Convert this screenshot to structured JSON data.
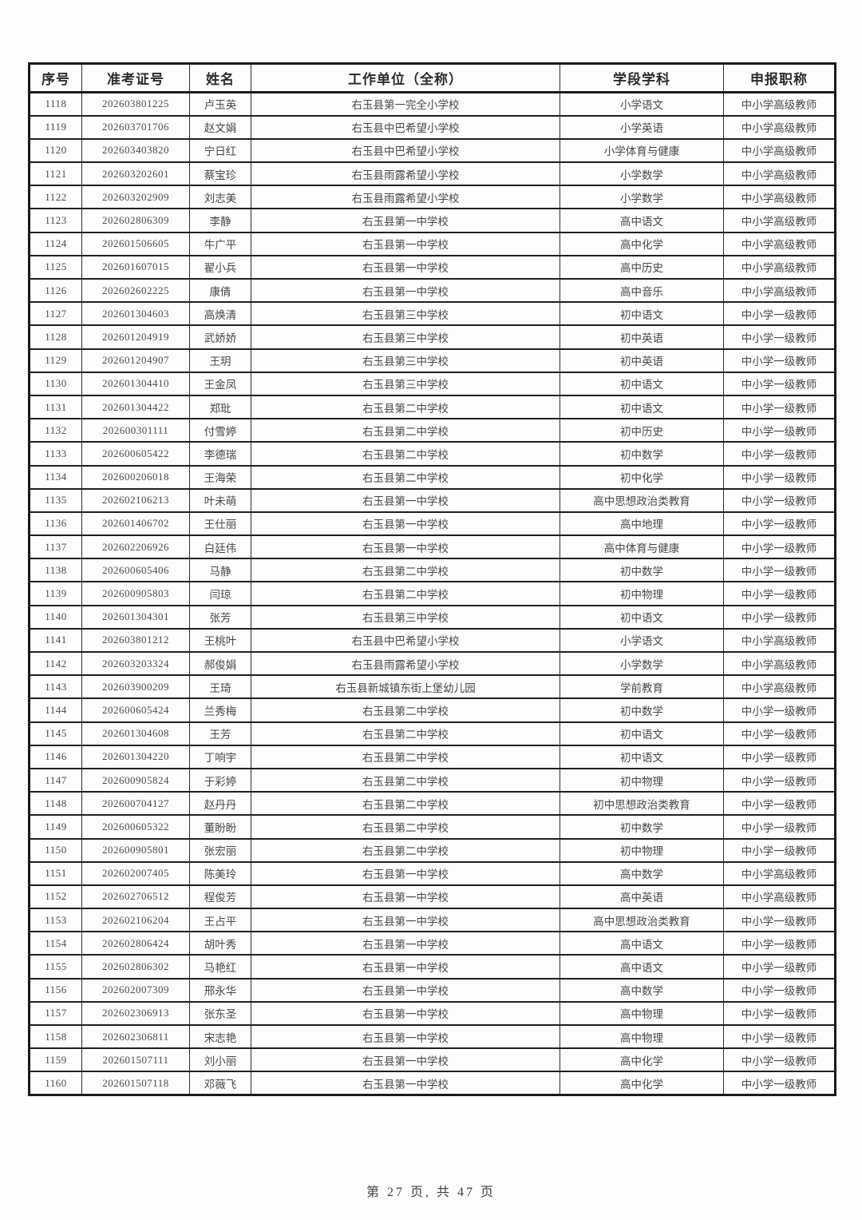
{
  "table": {
    "headers": [
      "序号",
      "准考证号",
      "姓名",
      "工作单位（全称）",
      "学段学科",
      "申报职称"
    ],
    "rows": [
      [
        "1118",
        "202603801225",
        "卢玉英",
        "右玉县第一完全小学校",
        "小学语文",
        "中小学高级教师"
      ],
      [
        "1119",
        "202603701706",
        "赵文娟",
        "右玉县中巴希望小学校",
        "小学英语",
        "中小学高级教师"
      ],
      [
        "1120",
        "202603403820",
        "宁日红",
        "右玉县中巴希望小学校",
        "小学体育与健康",
        "中小学高级教师"
      ],
      [
        "1121",
        "202603202601",
        "蔡宝珍",
        "右玉县雨露希望小学校",
        "小学数学",
        "中小学高级教师"
      ],
      [
        "1122",
        "202603202909",
        "刘志美",
        "右玉县雨露希望小学校",
        "小学数学",
        "中小学高级教师"
      ],
      [
        "1123",
        "202602806309",
        "李静",
        "右玉县第一中学校",
        "高中语文",
        "中小学高级教师"
      ],
      [
        "1124",
        "202601506605",
        "牛广平",
        "右玉县第一中学校",
        "高中化学",
        "中小学高级教师"
      ],
      [
        "1125",
        "202601607015",
        "翟小兵",
        "右玉县第一中学校",
        "高中历史",
        "中小学高级教师"
      ],
      [
        "1126",
        "202602602225",
        "康倩",
        "右玉县第一中学校",
        "高中音乐",
        "中小学高级教师"
      ],
      [
        "1127",
        "202601304603",
        "高焕清",
        "右玉县第三中学校",
        "初中语文",
        "中小学一级教师"
      ],
      [
        "1128",
        "202601204919",
        "武娇娇",
        "右玉县第三中学校",
        "初中英语",
        "中小学一级教师"
      ],
      [
        "1129",
        "202601204907",
        "王玥",
        "右玉县第三中学校",
        "初中英语",
        "中小学一级教师"
      ],
      [
        "1130",
        "202601304410",
        "王金凤",
        "右玉县第三中学校",
        "初中语文",
        "中小学一级教师"
      ],
      [
        "1131",
        "202601304422",
        "郑玭",
        "右玉县第二中学校",
        "初中语文",
        "中小学一级教师"
      ],
      [
        "1132",
        "202600301111",
        "付雪婷",
        "右玉县第二中学校",
        "初中历史",
        "中小学一级教师"
      ],
      [
        "1133",
        "202600605422",
        "李德瑞",
        "右玉县第二中学校",
        "初中数学",
        "中小学一级教师"
      ],
      [
        "1134",
        "202600206018",
        "王海荣",
        "右玉县第二中学校",
        "初中化学",
        "中小学一级教师"
      ],
      [
        "1135",
        "202602106213",
        "叶未萌",
        "右玉县第一中学校",
        "高中思想政治类教育",
        "中小学一级教师"
      ],
      [
        "1136",
        "202601406702",
        "王仕丽",
        "右玉县第一中学校",
        "高中地理",
        "中小学一级教师"
      ],
      [
        "1137",
        "202602206926",
        "白廷伟",
        "右玉县第一中学校",
        "高中体育与健康",
        "中小学一级教师"
      ],
      [
        "1138",
        "202600605406",
        "马静",
        "右玉县第二中学校",
        "初中数学",
        "中小学一级教师"
      ],
      [
        "1139",
        "202600905803",
        "闫琼",
        "右玉县第二中学校",
        "初中物理",
        "中小学一级教师"
      ],
      [
        "1140",
        "202601304301",
        "张芳",
        "右玉县第三中学校",
        "初中语文",
        "中小学一级教师"
      ],
      [
        "1141",
        "202603801212",
        "王桃叶",
        "右玉县中巴希望小学校",
        "小学语文",
        "中小学高级教师"
      ],
      [
        "1142",
        "202603203324",
        "郝俊娟",
        "右玉县雨露希望小学校",
        "小学数学",
        "中小学高级教师"
      ],
      [
        "1143",
        "202603900209",
        "王琦",
        "右玉县新城镇东街上堡幼儿园",
        "学前教育",
        "中小学高级教师"
      ],
      [
        "1144",
        "202600605424",
        "兰秀梅",
        "右玉县第二中学校",
        "初中数学",
        "中小学一级教师"
      ],
      [
        "1145",
        "202601304608",
        "王芳",
        "右玉县第二中学校",
        "初中语文",
        "中小学一级教师"
      ],
      [
        "1146",
        "202601304220",
        "丁响宇",
        "右玉县第二中学校",
        "初中语文",
        "中小学一级教师"
      ],
      [
        "1147",
        "202600905824",
        "于彩婷",
        "右玉县第二中学校",
        "初中物理",
        "中小学一级教师"
      ],
      [
        "1148",
        "202600704127",
        "赵丹丹",
        "右玉县第二中学校",
        "初中思想政治类教育",
        "中小学一级教师"
      ],
      [
        "1149",
        "202600605322",
        "董盼盼",
        "右玉县第二中学校",
        "初中数学",
        "中小学一级教师"
      ],
      [
        "1150",
        "202600905801",
        "张宏丽",
        "右玉县第二中学校",
        "初中物理",
        "中小学一级教师"
      ],
      [
        "1151",
        "202602007405",
        "陈美玲",
        "右玉县第一中学校",
        "高中数学",
        "中小学高级教师"
      ],
      [
        "1152",
        "202602706512",
        "程俊芳",
        "右玉县第一中学校",
        "高中英语",
        "中小学高级教师"
      ],
      [
        "1153",
        "202602106204",
        "王占平",
        "右玉县第一中学校",
        "高中思想政治类教育",
        "中小学一级教师"
      ],
      [
        "1154",
        "202602806424",
        "胡叶秀",
        "右玉县第一中学校",
        "高中语文",
        "中小学一级教师"
      ],
      [
        "1155",
        "202602806302",
        "马艳红",
        "右玉县第一中学校",
        "高中语文",
        "中小学一级教师"
      ],
      [
        "1156",
        "202602007309",
        "邢永华",
        "右玉县第一中学校",
        "高中数学",
        "中小学一级教师"
      ],
      [
        "1157",
        "202602306913",
        "张东圣",
        "右玉县第一中学校",
        "高中物理",
        "中小学一级教师"
      ],
      [
        "1158",
        "202602306811",
        "宋志艳",
        "右玉县第一中学校",
        "高中物理",
        "中小学一级教师"
      ],
      [
        "1159",
        "202601507111",
        "刘小丽",
        "右玉县第一中学校",
        "高中化学",
        "中小学一级教师"
      ],
      [
        "1160",
        "202601507118",
        "邓薇飞",
        "右玉县第一中学校",
        "高中化学",
        "中小学一级教师"
      ]
    ]
  },
  "footer": {
    "pagination": "第 27 页, 共 47 页"
  }
}
